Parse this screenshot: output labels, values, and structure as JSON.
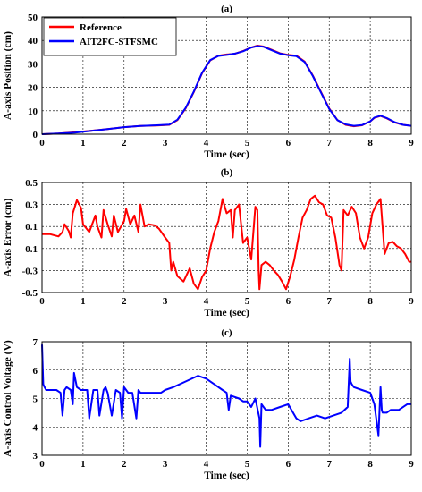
{
  "chart_data": [
    {
      "type": "line",
      "panel_label": "(a)",
      "xlabel": "Time (sec)",
      "ylabel": "A-axis Position (cm)",
      "xlim": [
        0,
        9
      ],
      "ylim": [
        0,
        50
      ],
      "xticks": [
        "0",
        "1",
        "2",
        "3",
        "4",
        "5",
        "6",
        "7",
        "8",
        "9"
      ],
      "yticks": [
        "0",
        "10",
        "20",
        "30",
        "40",
        "50"
      ],
      "grid": true,
      "legend": "top-left",
      "series": [
        {
          "name": "Reference",
          "color": "#ff0000",
          "x": [
            0,
            0.4,
            0.8,
            1.2,
            1.6,
            2.0,
            2.4,
            2.8,
            3.1,
            3.3,
            3.5,
            3.7,
            3.9,
            4.1,
            4.3,
            4.5,
            4.7,
            4.9,
            5.1,
            5.25,
            5.4,
            5.6,
            5.8,
            6.0,
            6.2,
            6.4,
            6.6,
            6.8,
            7.0,
            7.2,
            7.4,
            7.6,
            7.8,
            8.0,
            8.1,
            8.25,
            8.4,
            8.6,
            8.8,
            9.0
          ],
          "y": [
            0,
            0.3,
            0.8,
            1.5,
            2.2,
            3.0,
            3.5,
            3.7,
            4.0,
            6,
            11,
            18,
            26,
            31.5,
            33.5,
            34,
            34.3,
            35.5,
            37,
            37.8,
            37.4,
            36,
            34.5,
            33.8,
            33.5,
            31,
            25,
            18,
            11,
            6,
            4,
            3.4,
            3.8,
            5.5,
            7,
            7.8,
            6.8,
            5,
            4,
            3.6
          ]
        },
        {
          "name": "AIT2FC-STFSMC",
          "color": "#0000ff",
          "x": [
            0,
            0.4,
            0.8,
            1.2,
            1.6,
            2.0,
            2.4,
            2.8,
            3.1,
            3.3,
            3.5,
            3.7,
            3.9,
            4.1,
            4.3,
            4.5,
            4.7,
            4.9,
            5.1,
            5.25,
            5.4,
            5.6,
            5.8,
            6.0,
            6.2,
            6.4,
            6.6,
            6.8,
            7.0,
            7.2,
            7.4,
            7.6,
            7.8,
            8.0,
            8.1,
            8.25,
            8.4,
            8.6,
            8.8,
            9.0
          ],
          "y": [
            0,
            0.3,
            0.7,
            1.4,
            2.2,
            3.0,
            3.5,
            3.8,
            4.1,
            6.2,
            11.2,
            18.2,
            26.2,
            31.6,
            33.4,
            33.8,
            34.4,
            35.4,
            37,
            37.6,
            37.3,
            35.8,
            34.4,
            33.7,
            33.3,
            30.8,
            24.8,
            17.8,
            10.8,
            6,
            4.2,
            3.6,
            3.9,
            5.5,
            7.1,
            7.9,
            6.9,
            5.1,
            4,
            3.6
          ]
        }
      ]
    },
    {
      "type": "line",
      "panel_label": "(b)",
      "xlabel": "Time (sec)",
      "ylabel": "A-axis Error (cm)",
      "xlim": [
        0,
        9
      ],
      "ylim": [
        -0.5,
        0.5
      ],
      "xticks": [
        "0",
        "1",
        "2",
        "3",
        "4",
        "5",
        "6",
        "7",
        "8",
        "9"
      ],
      "yticks": [
        "-0.5",
        "-0.3",
        "-0.1",
        "0.1",
        "0.3",
        "0.5"
      ],
      "grid": true,
      "series": [
        {
          "color": "#ff0000",
          "x": [
            0,
            0.2,
            0.4,
            0.5,
            0.55,
            0.65,
            0.7,
            0.75,
            0.85,
            0.95,
            1.0,
            1.15,
            1.3,
            1.35,
            1.45,
            1.5,
            1.6,
            1.7,
            1.75,
            1.85,
            2.0,
            2.05,
            2.15,
            2.25,
            2.35,
            2.4,
            2.5,
            2.6,
            2.75,
            2.85,
            3.0,
            3.1,
            3.15,
            3.2,
            3.3,
            3.45,
            3.6,
            3.7,
            3.8,
            3.9,
            4.0,
            4.1,
            4.2,
            4.3,
            4.4,
            4.5,
            4.6,
            4.65,
            4.7,
            4.8,
            4.9,
            5.0,
            5.1,
            5.2,
            5.25,
            5.28,
            5.3,
            5.35,
            5.45,
            5.55,
            5.65,
            5.75,
            5.85,
            5.95,
            6.05,
            6.15,
            6.25,
            6.35,
            6.45,
            6.55,
            6.65,
            6.75,
            6.85,
            6.95,
            7.05,
            7.15,
            7.25,
            7.3,
            7.35,
            7.45,
            7.55,
            7.65,
            7.75,
            7.85,
            7.95,
            8.05,
            8.15,
            8.25,
            8.3,
            8.35,
            8.45,
            8.55,
            8.65,
            8.75,
            8.85,
            8.95,
            9.0
          ],
          "y": [
            0.03,
            0.03,
            0.01,
            0.05,
            0.12,
            0.06,
            0.0,
            0.22,
            0.34,
            0.27,
            0.12,
            0.05,
            0.2,
            0.1,
            0.0,
            0.25,
            0.12,
            0.01,
            0.2,
            0.05,
            0.15,
            0.26,
            0.12,
            0.2,
            0.05,
            0.3,
            0.1,
            0.12,
            0.11,
            0.08,
            0.0,
            -0.05,
            -0.3,
            -0.22,
            -0.35,
            -0.4,
            -0.28,
            -0.42,
            -0.47,
            -0.36,
            -0.3,
            -0.1,
            0.05,
            0.15,
            0.35,
            0.22,
            0.25,
            0.0,
            0.25,
            0.3,
            -0.05,
            0.0,
            -0.2,
            0.28,
            0.25,
            -0.3,
            -0.47,
            -0.25,
            -0.22,
            -0.25,
            -0.3,
            -0.34,
            -0.4,
            -0.47,
            -0.35,
            -0.2,
            0.0,
            0.18,
            0.25,
            0.35,
            0.38,
            0.32,
            0.3,
            0.2,
            0.18,
            0.0,
            -0.25,
            -0.3,
            0.25,
            0.2,
            0.28,
            0.22,
            0.0,
            -0.1,
            0.0,
            0.22,
            0.3,
            0.35,
            0.1,
            -0.15,
            -0.05,
            -0.04,
            -0.08,
            -0.1,
            -0.15,
            -0.22,
            -0.22
          ]
        }
      ]
    },
    {
      "type": "line",
      "panel_label": "(c)",
      "xlabel": "Time (sec)",
      "ylabel": "A-axis Control Voltage (V)",
      "xlim": [
        0,
        9
      ],
      "ylim": [
        3,
        7
      ],
      "xticks": [
        "0",
        "1",
        "2",
        "3",
        "4",
        "5",
        "6",
        "7",
        "8",
        "9"
      ],
      "yticks": [
        "3",
        "4",
        "5",
        "6",
        "7"
      ],
      "grid": true,
      "series": [
        {
          "color": "#0000ff",
          "x": [
            0,
            0.03,
            0.06,
            0.1,
            0.2,
            0.35,
            0.45,
            0.5,
            0.55,
            0.6,
            0.7,
            0.75,
            0.78,
            0.85,
            0.95,
            1.1,
            1.15,
            1.25,
            1.35,
            1.4,
            1.5,
            1.55,
            1.6,
            1.7,
            1.8,
            1.9,
            1.95,
            2.0,
            2.1,
            2.2,
            2.3,
            2.35,
            2.4,
            2.5,
            2.7,
            2.9,
            3.0,
            3.2,
            3.5,
            3.8,
            4.0,
            4.2,
            4.4,
            4.5,
            4.55,
            4.6,
            4.8,
            4.9,
            5.0,
            5.1,
            5.2,
            5.3,
            5.32,
            5.35,
            5.45,
            5.6,
            5.8,
            6.0,
            6.2,
            6.3,
            6.5,
            6.7,
            6.9,
            7.1,
            7.3,
            7.45,
            7.5,
            7.52,
            7.55,
            7.6,
            7.8,
            8.0,
            8.1,
            8.2,
            8.25,
            8.28,
            8.3,
            8.4,
            8.5,
            8.7,
            8.9,
            9.0
          ],
          "y": [
            6.9,
            5.5,
            5.4,
            5.3,
            5.3,
            5.3,
            5.2,
            4.4,
            5.3,
            5.4,
            5.3,
            4.8,
            5.9,
            5.4,
            5.3,
            5.3,
            4.3,
            5.3,
            5.3,
            4.4,
            5.3,
            5.4,
            5.2,
            4.4,
            5.3,
            5.2,
            4.3,
            5.4,
            5.2,
            5.2,
            4.3,
            5.3,
            5.2,
            5.2,
            5.2,
            5.2,
            5.3,
            5.4,
            5.6,
            5.8,
            5.7,
            5.5,
            5.3,
            5.2,
            4.6,
            5.1,
            5.0,
            4.9,
            4.9,
            4.7,
            5.0,
            4.3,
            3.3,
            4.8,
            4.6,
            4.6,
            4.7,
            4.8,
            4.3,
            4.2,
            4.3,
            4.4,
            4.3,
            4.4,
            4.5,
            4.7,
            6.4,
            5.6,
            5.5,
            5.4,
            5.3,
            5.2,
            4.8,
            3.7,
            5.4,
            4.6,
            4.5,
            4.5,
            4.6,
            4.6,
            4.8,
            4.8
          ]
        }
      ]
    }
  ]
}
